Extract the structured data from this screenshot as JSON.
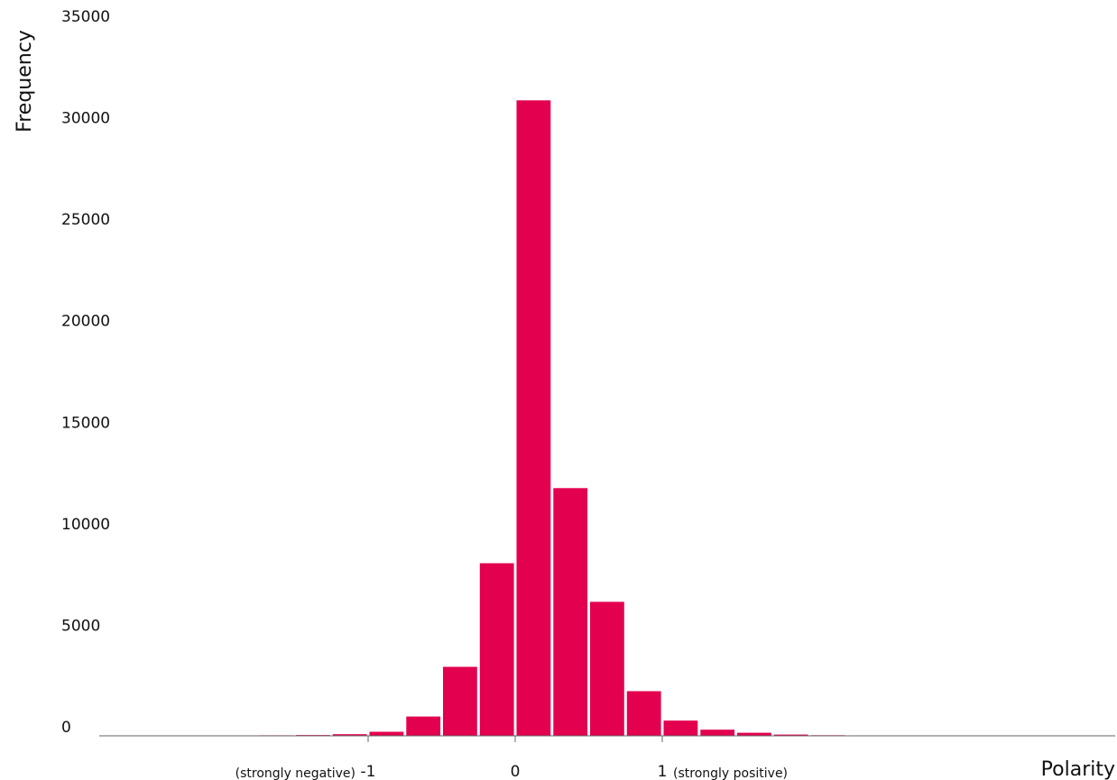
{
  "chart_data": {
    "type": "bar",
    "xlabel": "Polarity",
    "ylabel": "Frequency",
    "ylim": [
      0,
      35000
    ],
    "xlim": [
      -2.8,
      2.6
    ],
    "grid": false,
    "bar_color": "#e3004f",
    "y_ticks": [
      {
        "value": 0,
        "label": "0"
      },
      {
        "value": 5000,
        "label": "5000"
      },
      {
        "value": 10000,
        "label": "10000"
      },
      {
        "value": 15000,
        "label": "15000"
      },
      {
        "value": 20000,
        "label": "20000"
      },
      {
        "value": 25000,
        "label": "25000"
      },
      {
        "value": 30000,
        "label": "30000"
      },
      {
        "value": 35000,
        "label": "35000"
      }
    ],
    "x_ticks": [
      {
        "value": -1,
        "label": "-1",
        "note": "(strongly negative)"
      },
      {
        "value": 0,
        "label": "0",
        "note": ""
      },
      {
        "value": 1,
        "label": "1",
        "note": "(strongly positive)"
      }
    ],
    "bin_width": 0.25,
    "bins": [
      {
        "x": -2.125,
        "value": 10
      },
      {
        "x": -1.875,
        "value": 15
      },
      {
        "x": -1.625,
        "value": 25
      },
      {
        "x": -1.375,
        "value": 40
      },
      {
        "x": -1.125,
        "value": 80
      },
      {
        "x": -0.875,
        "value": 200
      },
      {
        "x": -0.625,
        "value": 950
      },
      {
        "x": -0.375,
        "value": 3400
      },
      {
        "x": -0.125,
        "value": 8500
      },
      {
        "x": 0.125,
        "value": 31300
      },
      {
        "x": 0.375,
        "value": 12200
      },
      {
        "x": 0.625,
        "value": 6600
      },
      {
        "x": 0.875,
        "value": 2200
      },
      {
        "x": 1.125,
        "value": 750
      },
      {
        "x": 1.375,
        "value": 300
      },
      {
        "x": 1.625,
        "value": 150
      },
      {
        "x": 1.875,
        "value": 60
      },
      {
        "x": 2.125,
        "value": 30
      },
      {
        "x": 2.375,
        "value": 15
      }
    ]
  }
}
